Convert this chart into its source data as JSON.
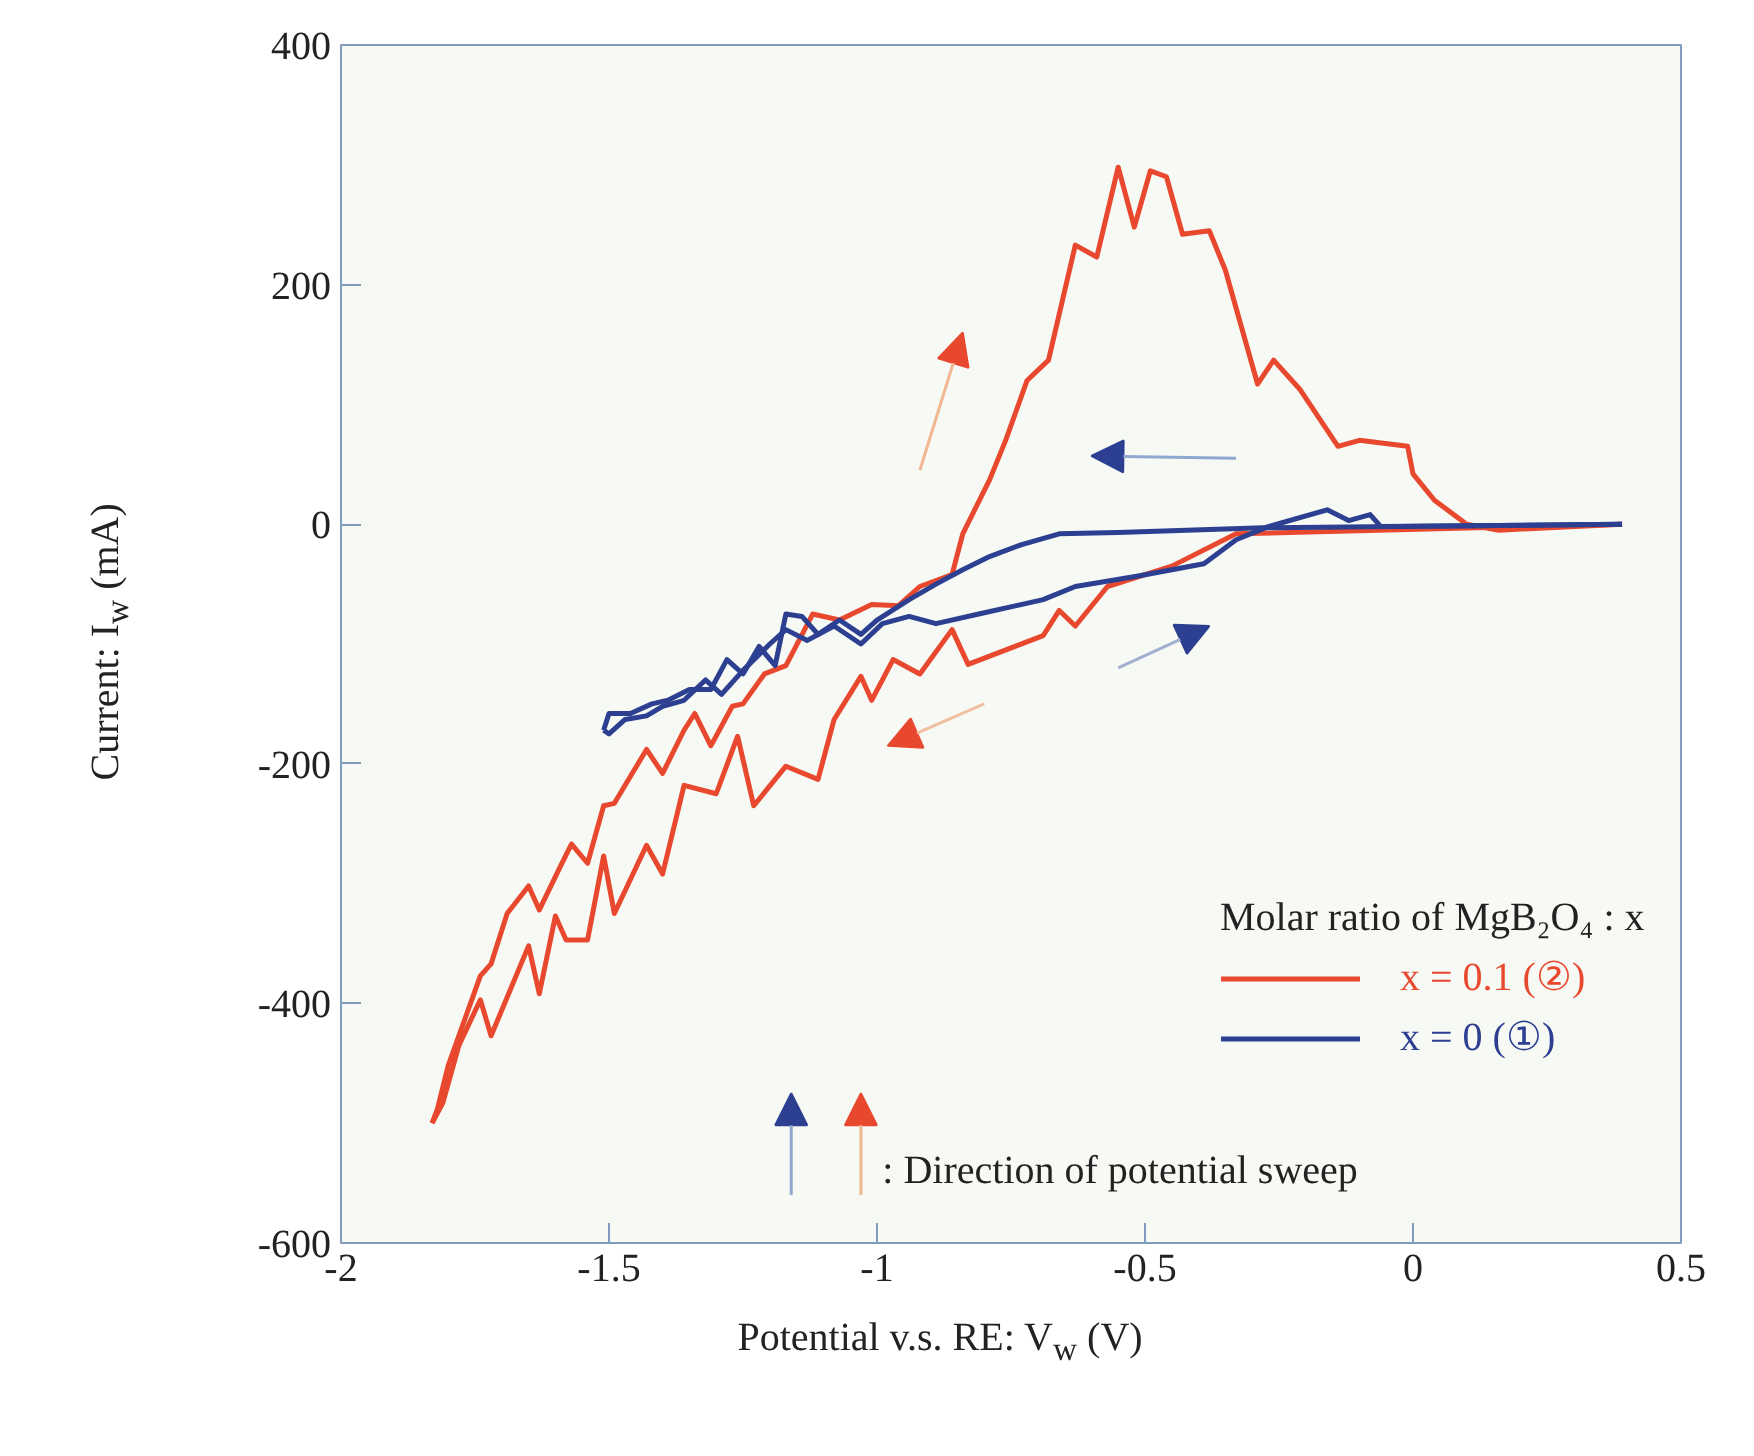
{
  "chart_data": {
    "type": "line",
    "xlabel": "Potential v.s. RE: V$_{w}$ (V)",
    "ylabel": "Current: I$_{w}$ (mA)",
    "legend_title": "Molar ratio of MgB₂O₄ : x",
    "legend": "bottom right",
    "grid": false,
    "line_style": "solid",
    "xlim": [
      -2,
      0.5
    ],
    "xticks": [
      -2,
      -1.5,
      -1,
      -0.5,
      0,
      0.5
    ],
    "ylim": [
      -600,
      400
    ],
    "yticks": [
      -600,
      -400,
      -200,
      0,
      200,
      400
    ],
    "series": [
      {
        "color": "#e8482e",
        "x": [
          -1.83,
          -1.81,
          -1.78,
          -1.74,
          -1.72,
          -1.65,
          -1.63,
          -1.6,
          -1.58,
          -1.54,
          -1.51,
          -1.49,
          -1.43,
          -1.4,
          -1.36,
          -1.3,
          -1.26,
          -1.23,
          -1.17,
          -1.11,
          -1.08,
          -1.03,
          -1.01,
          -0.97,
          -0.92,
          -0.86,
          -0.83,
          -0.69,
          -0.66,
          -0.63,
          -0.57,
          -0.45,
          -0.33,
          0.39
        ],
        "values": [
          -500,
          -483,
          -435,
          -397,
          -427,
          -352,
          -392,
          -327,
          -347,
          -347,
          -277,
          -325,
          -268,
          -292,
          -218,
          -225,
          -177,
          -235,
          -202,
          -213,
          -163,
          -127,
          -147,
          -113,
          -125,
          -88,
          -117,
          -93,
          -72,
          -85,
          -52,
          -35,
          -8,
          0
        ]
      },
      {
        "name": "x = 0.1 (②)",
        "color": "#e8482e",
        "x": [
          -1.83,
          -1.82,
          -1.8,
          -1.74,
          -1.72,
          -1.69,
          -1.65,
          -1.63,
          -1.59,
          -1.57,
          -1.54,
          -1.51,
          -1.49,
          -1.43,
          -1.4,
          -1.36,
          -1.34,
          -1.31,
          -1.27,
          -1.25,
          -1.21,
          -1.17,
          -1.12,
          -1.07,
          -1.01,
          -0.96,
          -0.92,
          -0.86,
          -0.84,
          -0.79,
          -0.76,
          -0.72,
          -0.68,
          -0.63,
          -0.59,
          -0.55,
          -0.52,
          -0.49,
          -0.46,
          -0.43,
          -0.38,
          -0.35,
          -0.29,
          -0.26,
          -0.21,
          -0.14,
          -0.1,
          -0.01,
          0,
          0.04,
          0.1,
          0.16,
          0.39
        ],
        "values": [
          -500,
          -488,
          -452,
          -377,
          -367,
          -325,
          -302,
          -322,
          -285,
          -267,
          -283,
          -235,
          -233,
          -188,
          -208,
          -172,
          -158,
          -185,
          -152,
          -150,
          -125,
          -118,
          -75,
          -80,
          -67,
          -68,
          -52,
          -42,
          -8,
          37,
          70,
          120,
          137,
          233,
          223,
          298,
          248,
          295,
          290,
          242,
          245,
          212,
          117,
          137,
          112,
          65,
          70,
          65,
          42,
          20,
          0,
          -5,
          0
        ]
      },
      {
        "color": "#2c3f91",
        "x": [
          -1.51,
          -1.5,
          -1.46,
          -1.42,
          -1.39,
          -1.35,
          -1.31,
          -1.28,
          -1.25,
          -1.22,
          -1.19,
          -1.17,
          -1.14,
          -1.11,
          -1.07,
          -1.03,
          -1,
          -0.94,
          -0.89,
          -0.84,
          -0.79,
          -0.73,
          -0.66,
          -0.55,
          -0.28,
          0.39
        ],
        "values": [
          -172,
          -158,
          -158,
          -150,
          -147,
          -138,
          -138,
          -113,
          -125,
          -102,
          -118,
          -75,
          -77,
          -92,
          -80,
          -92,
          -80,
          -63,
          -50,
          -38,
          -27,
          -17,
          -8,
          -7,
          -3,
          0
        ]
      },
      {
        "name": "x = 0 (①)",
        "color": "#2c3f91",
        "x": [
          -1.51,
          -1.5,
          -1.47,
          -1.43,
          -1.4,
          -1.36,
          -1.32,
          -1.29,
          -1.25,
          -1.2,
          -1.17,
          -1.13,
          -1.08,
          -1.03,
          -0.99,
          -0.94,
          -0.89,
          -0.81,
          -0.69,
          -0.63,
          -0.51,
          -0.39,
          -0.33,
          -0.27,
          -0.16,
          -0.12,
          -0.08,
          -0.06,
          0.39
        ],
        "values": [
          -172,
          -175,
          -163,
          -160,
          -152,
          -147,
          -130,
          -142,
          -122,
          -100,
          -88,
          -97,
          -85,
          -100,
          -83,
          -77,
          -83,
          -75,
          -63,
          -52,
          -43,
          -33,
          -13,
          -2,
          12,
          3,
          8,
          -2,
          0
        ]
      }
    ],
    "annotations": [
      ": Direction of potential sweep"
    ]
  }
}
